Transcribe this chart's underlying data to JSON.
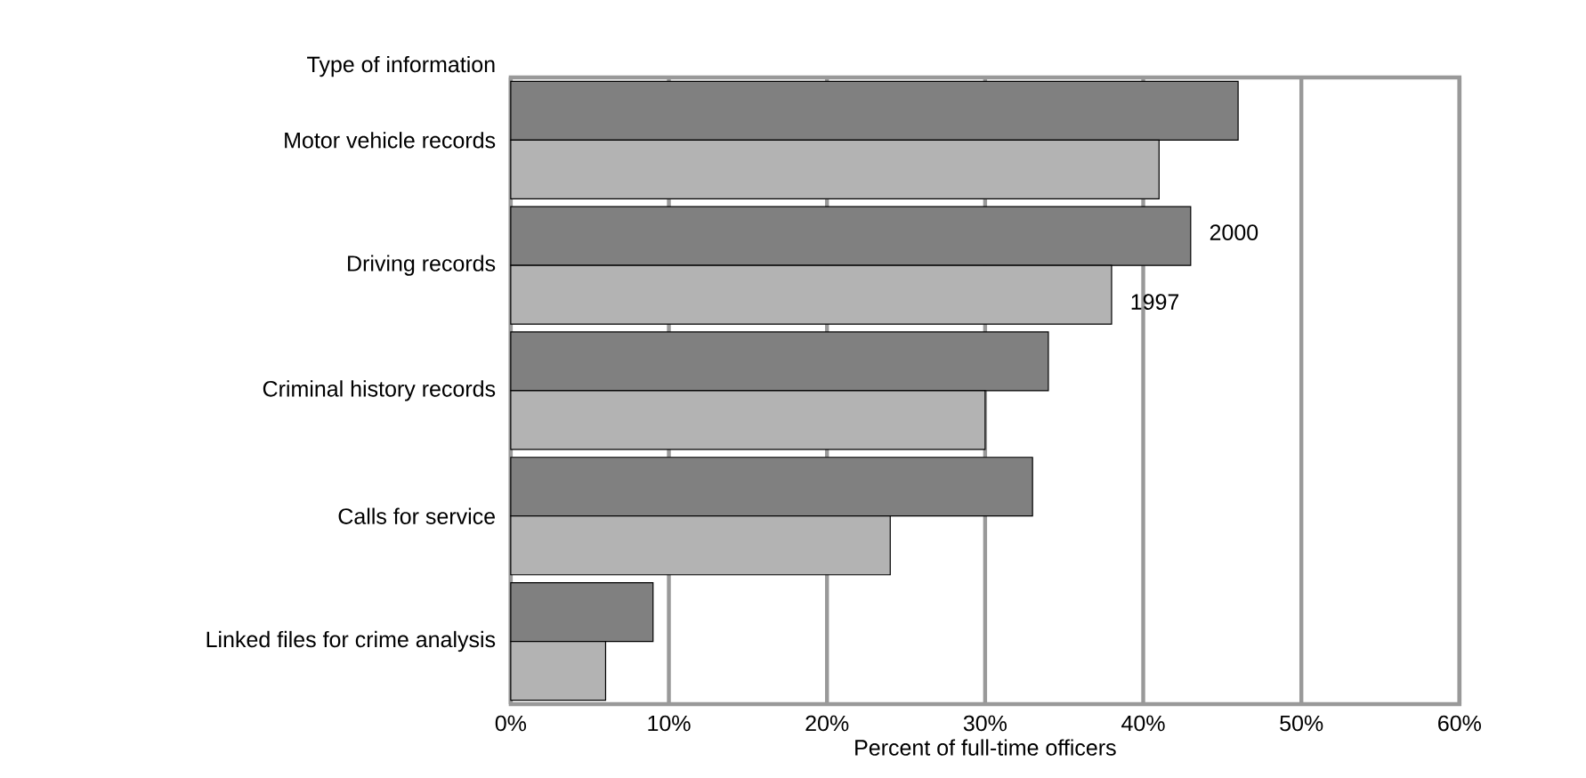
{
  "chart_data": {
    "type": "bar",
    "orientation": "horizontal",
    "ylabel": "Type of information",
    "xlabel": "Percent of full-time officers",
    "categories": [
      "Motor vehicle records",
      "Driving records",
      "Criminal history records",
      "Calls for service",
      "Linked files for crime analysis"
    ],
    "series": [
      {
        "name": "2000",
        "color": "#808080",
        "values": [
          46,
          43,
          34,
          33,
          9
        ]
      },
      {
        "name": "1997",
        "color": "#b3b3b3",
        "values": [
          41,
          38,
          30,
          24,
          6
        ]
      }
    ],
    "xlim": [
      0,
      60
    ],
    "xticks": [
      {
        "value": 0,
        "label": "0%"
      },
      {
        "value": 10,
        "label": "10%"
      },
      {
        "value": 20,
        "label": "20%"
      },
      {
        "value": 30,
        "label": "30%"
      },
      {
        "value": 40,
        "label": "40%"
      },
      {
        "value": 50,
        "label": "50%"
      },
      {
        "value": 60,
        "label": "60%"
      }
    ],
    "grid": "x"
  }
}
